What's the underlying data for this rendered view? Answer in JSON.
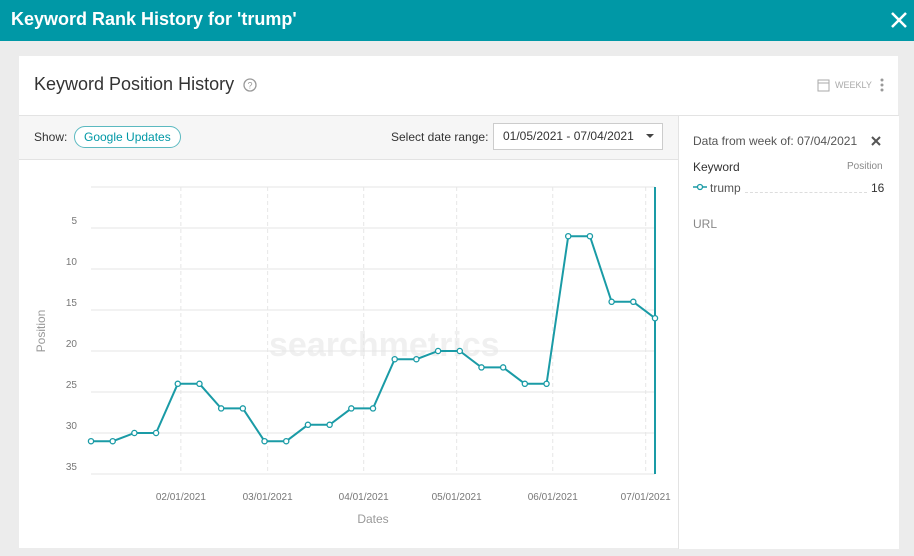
{
  "header": {
    "title": "Keyword Rank History for 'trump'"
  },
  "card": {
    "title": "Keyword Position History",
    "interval": "WEEKLY"
  },
  "toolbar": {
    "show_label": "Show:",
    "google_updates": "Google Updates",
    "date_range_label": "Select date range:",
    "date_range": "01/05/2021 - 07/04/2021"
  },
  "panel": {
    "week_label": "Data from week of:",
    "keyword_header": "Keyword",
    "position_header": "Position",
    "url_label": "URL"
  },
  "watermark": "searchmetrics",
  "chart_data": {
    "type": "line",
    "x_label": "Dates",
    "y_label": "Position",
    "x": [
      "01/03/2021",
      "01/10/2021",
      "01/17/2021",
      "01/24/2021",
      "01/31/2021",
      "02/07/2021",
      "02/14/2021",
      "02/21/2021",
      "02/28/2021",
      "03/07/2021",
      "03/14/2021",
      "03/21/2021",
      "03/28/2021",
      "04/04/2021",
      "04/11/2021",
      "04/18/2021",
      "04/25/2021",
      "05/02/2021",
      "05/09/2021",
      "05/16/2021",
      "05/23/2021",
      "05/30/2021",
      "06/06/2021",
      "06/13/2021",
      "06/20/2021",
      "06/27/2021",
      "07/04/2021"
    ],
    "series": [
      {
        "name": "trump",
        "color": "#1a9ba6",
        "values": [
          31,
          31,
          30,
          30,
          24,
          24,
          27,
          27,
          31,
          31,
          29,
          29,
          27,
          27,
          21,
          21,
          20,
          20,
          22,
          22,
          24,
          24,
          6,
          6,
          14,
          14,
          16
        ]
      }
    ],
    "xlim": [
      "01/03/2021",
      "07/04/2021"
    ],
    "xticks": [
      "02/01/2021",
      "03/01/2021",
      "04/01/2021",
      "05/01/2021",
      "06/01/2021",
      "07/01/2021"
    ],
    "ylim": [
      0,
      35
    ],
    "y_inverted": true,
    "yticks": [
      5,
      10,
      15,
      20,
      25,
      30,
      35
    ],
    "grid": true
  }
}
